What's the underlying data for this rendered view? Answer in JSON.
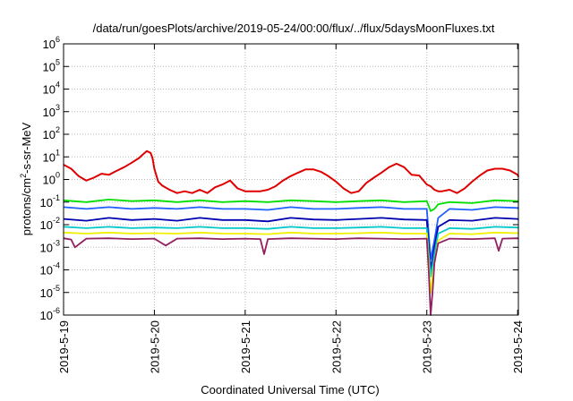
{
  "chart_data": {
    "type": "line",
    "title": "/data/run/goesPlots/archive/2019-05-24/00:00/flux/../flux/5daysMoonFluxes.txt",
    "xlabel": "Coordinated Universal Time (UTC)",
    "ylabel": {
      "before": "protons/cm",
      "sup": "2",
      "after": "-s-sr-MeV"
    },
    "yscale": "log",
    "ylim": [
      1e-06,
      1000000.0
    ],
    "xlim": [
      "2019-05-19",
      "2019-05-24 00:12"
    ],
    "grid": true,
    "legend": "none",
    "y_ticks": [
      {
        "value": 1e-06,
        "base": "10",
        "exp": "-6"
      },
      {
        "value": 1e-05,
        "base": "10",
        "exp": "-5"
      },
      {
        "value": 0.0001,
        "base": "10",
        "exp": "-4"
      },
      {
        "value": 0.001,
        "base": "10",
        "exp": "-3"
      },
      {
        "value": 0.01,
        "base": "10",
        "exp": "-2"
      },
      {
        "value": 0.1,
        "base": "10",
        "exp": "-1"
      },
      {
        "value": 1,
        "base": "10",
        "exp": "0"
      },
      {
        "value": 10.0,
        "base": "10",
        "exp": "1"
      },
      {
        "value": 100.0,
        "base": "10",
        "exp": "2"
      },
      {
        "value": 1000.0,
        "base": "10",
        "exp": "3"
      },
      {
        "value": 10000.0,
        "base": "10",
        "exp": "4"
      },
      {
        "value": 100000.0,
        "base": "10",
        "exp": "5"
      },
      {
        "value": 1000000.0,
        "base": "10",
        "exp": "6"
      }
    ],
    "x_ticks": [
      {
        "value": "2019-05-19",
        "label": "2019-5-19"
      },
      {
        "value": "2019-05-20",
        "label": "2019-5-20"
      },
      {
        "value": "2019-05-21",
        "label": "2019-5-21"
      },
      {
        "value": "2019-05-22",
        "label": "2019-5-22"
      },
      {
        "value": "2019-05-23",
        "label": "2019-5-23"
      },
      {
        "value": "2019-05-24",
        "label": "2019-5-24"
      }
    ],
    "series": [
      {
        "color": "#e00000",
        "x": [
          "2019-05-19 00:00",
          "2019-05-19 02:00",
          "2019-05-19 04:00",
          "2019-05-19 06:00",
          "2019-05-19 08:00",
          "2019-05-19 10:00",
          "2019-05-19 12:00",
          "2019-05-19 14:00",
          "2019-05-19 16:00",
          "2019-05-19 18:00",
          "2019-05-19 20:00",
          "2019-05-19 21:00",
          "2019-05-19 22:00",
          "2019-05-19 23:00",
          "2019-05-19 23:30",
          "2019-05-20 00:00",
          "2019-05-20 01:00",
          "2019-05-20 02:00",
          "2019-05-20 04:00",
          "2019-05-20 06:00",
          "2019-05-20 08:00",
          "2019-05-20 10:00",
          "2019-05-20 12:00",
          "2019-05-20 14:00",
          "2019-05-20 16:00",
          "2019-05-20 18:00",
          "2019-05-20 20:00",
          "2019-05-20 22:00",
          "2019-05-21 00:00",
          "2019-05-21 02:00",
          "2019-05-21 04:00",
          "2019-05-21 06:00",
          "2019-05-21 08:00",
          "2019-05-21 10:00",
          "2019-05-21 12:00",
          "2019-05-21 14:00",
          "2019-05-21 16:00",
          "2019-05-21 18:00",
          "2019-05-21 20:00",
          "2019-05-21 22:00",
          "2019-05-22 00:00",
          "2019-05-22 02:00",
          "2019-05-22 04:00",
          "2019-05-22 06:00",
          "2019-05-22 08:00",
          "2019-05-22 10:00",
          "2019-05-22 12:00",
          "2019-05-22 14:00",
          "2019-05-22 16:00",
          "2019-05-22 18:00",
          "2019-05-22 20:00",
          "2019-05-22 22:00",
          "2019-05-23 00:00",
          "2019-05-23 01:00",
          "2019-05-23 02:00",
          "2019-05-23 03:00",
          "2019-05-23 04:00",
          "2019-05-23 06:00",
          "2019-05-23 08:00",
          "2019-05-23 10:00",
          "2019-05-23 12:00",
          "2019-05-23 14:00",
          "2019-05-23 16:00",
          "2019-05-23 18:00",
          "2019-05-23 20:00",
          "2019-05-23 22:00",
          "2019-05-24 00:00",
          "2019-05-24 00:12"
        ],
        "y": [
          4.5,
          3.0,
          1.4,
          0.9,
          1.2,
          1.8,
          1.6,
          2.4,
          3.5,
          5.5,
          9.0,
          13,
          18,
          15,
          9.0,
          3.0,
          0.8,
          0.55,
          0.35,
          0.25,
          0.3,
          0.25,
          0.35,
          0.25,
          0.45,
          0.6,
          0.9,
          0.4,
          0.3,
          0.3,
          0.3,
          0.35,
          0.5,
          0.9,
          1.4,
          2.0,
          2.8,
          2.8,
          2.2,
          1.4,
          0.8,
          0.4,
          0.25,
          0.3,
          0.7,
          1.2,
          2.0,
          3.5,
          5.0,
          3.5,
          1.6,
          1.5,
          0.6,
          0.5,
          0.35,
          0.3,
          0.3,
          0.35,
          0.25,
          0.4,
          0.8,
          1.5,
          2.5,
          3.0,
          3.0,
          2.5,
          1.6,
          1.3
        ]
      },
      {
        "color": "#00e000",
        "x": [
          "2019-05-19 00:00",
          "2019-05-19 06:00",
          "2019-05-19 12:00",
          "2019-05-19 18:00",
          "2019-05-20 00:00",
          "2019-05-20 06:00",
          "2019-05-20 12:00",
          "2019-05-20 18:00",
          "2019-05-21 00:00",
          "2019-05-21 06:00",
          "2019-05-21 12:00",
          "2019-05-21 18:00",
          "2019-05-22 00:00",
          "2019-05-22 06:00",
          "2019-05-22 12:00",
          "2019-05-22 18:00",
          "2019-05-23 00:00",
          "2019-05-23 01:00",
          "2019-05-23 02:00",
          "2019-05-23 03:00",
          "2019-05-23 06:00",
          "2019-05-23 12:00",
          "2019-05-23 18:00",
          "2019-05-24 00:00",
          "2019-05-24 00:12"
        ],
        "y": [
          0.12,
          0.1,
          0.13,
          0.11,
          0.12,
          0.1,
          0.12,
          0.1,
          0.11,
          0.1,
          0.12,
          0.11,
          0.1,
          0.11,
          0.12,
          0.1,
          0.11,
          0.04,
          0.05,
          0.08,
          0.1,
          0.09,
          0.12,
          0.11,
          0.1
        ]
      },
      {
        "color": "#2060ff",
        "x": [
          "2019-05-19 00:00",
          "2019-05-19 06:00",
          "2019-05-19 12:00",
          "2019-05-19 18:00",
          "2019-05-20 00:00",
          "2019-05-20 06:00",
          "2019-05-20 12:00",
          "2019-05-20 18:00",
          "2019-05-21 00:00",
          "2019-05-21 06:00",
          "2019-05-21 12:00",
          "2019-05-21 18:00",
          "2019-05-22 00:00",
          "2019-05-22 06:00",
          "2019-05-22 12:00",
          "2019-05-22 18:00",
          "2019-05-23 00:00",
          "2019-05-23 01:00",
          "2019-05-23 02:00",
          "2019-05-23 03:00",
          "2019-05-23 06:00",
          "2019-05-23 12:00",
          "2019-05-23 18:00",
          "2019-05-24 00:00",
          "2019-05-24 00:12"
        ],
        "y": [
          0.06,
          0.05,
          0.06,
          0.05,
          0.055,
          0.05,
          0.06,
          0.05,
          0.05,
          0.045,
          0.06,
          0.05,
          0.05,
          0.055,
          0.06,
          0.05,
          0.05,
          0.0003,
          0.002,
          0.02,
          0.05,
          0.045,
          0.06,
          0.055,
          0.05
        ]
      },
      {
        "color": "#0000b0",
        "x": [
          "2019-05-19 00:00",
          "2019-05-19 06:00",
          "2019-05-19 12:00",
          "2019-05-19 18:00",
          "2019-05-20 00:00",
          "2019-05-20 06:00",
          "2019-05-20 12:00",
          "2019-05-20 18:00",
          "2019-05-21 00:00",
          "2019-05-21 06:00",
          "2019-05-21 12:00",
          "2019-05-21 18:00",
          "2019-05-22 00:00",
          "2019-05-22 06:00",
          "2019-05-22 12:00",
          "2019-05-22 18:00",
          "2019-05-23 00:00",
          "2019-05-23 01:00",
          "2019-05-23 02:00",
          "2019-05-23 03:00",
          "2019-05-23 06:00",
          "2019-05-23 12:00",
          "2019-05-23 18:00",
          "2019-05-24 00:00",
          "2019-05-24 00:12"
        ],
        "y": [
          0.018,
          0.015,
          0.02,
          0.016,
          0.018,
          0.015,
          0.02,
          0.016,
          0.016,
          0.014,
          0.02,
          0.017,
          0.016,
          0.018,
          0.02,
          0.017,
          0.016,
          0.0001,
          0.001,
          0.008,
          0.016,
          0.015,
          0.02,
          0.018,
          0.017
        ]
      },
      {
        "color": "#00c8c8",
        "x": [
          "2019-05-19 00:00",
          "2019-05-19 06:00",
          "2019-05-19 12:00",
          "2019-05-19 18:00",
          "2019-05-20 00:00",
          "2019-05-20 06:00",
          "2019-05-20 12:00",
          "2019-05-20 18:00",
          "2019-05-21 00:00",
          "2019-05-21 06:00",
          "2019-05-21 12:00",
          "2019-05-21 18:00",
          "2019-05-22 00:00",
          "2019-05-22 06:00",
          "2019-05-22 12:00",
          "2019-05-22 18:00",
          "2019-05-23 00:00",
          "2019-05-23 01:00",
          "2019-05-23 02:00",
          "2019-05-23 03:00",
          "2019-05-23 06:00",
          "2019-05-23 12:00",
          "2019-05-23 18:00",
          "2019-05-24 00:00",
          "2019-05-24 00:12"
        ],
        "y": [
          0.008,
          0.007,
          0.008,
          0.007,
          0.0075,
          0.007,
          0.008,
          0.007,
          0.007,
          0.0065,
          0.008,
          0.007,
          0.007,
          0.0075,
          0.008,
          0.007,
          0.007,
          5e-05,
          0.0005,
          0.004,
          0.007,
          0.0065,
          0.008,
          0.0075,
          0.007
        ]
      },
      {
        "color": "#f0f000",
        "x": [
          "2019-05-19 00:00",
          "2019-05-19 06:00",
          "2019-05-19 12:00",
          "2019-05-19 18:00",
          "2019-05-20 00:00",
          "2019-05-20 06:00",
          "2019-05-20 12:00",
          "2019-05-20 18:00",
          "2019-05-21 00:00",
          "2019-05-21 06:00",
          "2019-05-21 12:00",
          "2019-05-21 18:00",
          "2019-05-22 00:00",
          "2019-05-22 06:00",
          "2019-05-22 12:00",
          "2019-05-22 18:00",
          "2019-05-23 00:00",
          "2019-05-23 01:00",
          "2019-05-23 02:00",
          "2019-05-23 03:00",
          "2019-05-23 06:00",
          "2019-05-23 12:00",
          "2019-05-23 18:00",
          "2019-05-24 00:00",
          "2019-05-24 00:12"
        ],
        "y": [
          0.0045,
          0.004,
          0.0045,
          0.004,
          0.0042,
          0.004,
          0.0045,
          0.004,
          0.004,
          0.0038,
          0.0045,
          0.004,
          0.004,
          0.0042,
          0.0045,
          0.004,
          0.004,
          1e-05,
          0.0002,
          0.002,
          0.004,
          0.0038,
          0.0045,
          0.0042,
          0.004
        ]
      },
      {
        "color": "#902060",
        "x": [
          "2019-05-19 00:00",
          "2019-05-19 02:00",
          "2019-05-19 03:00",
          "2019-05-19 06:00",
          "2019-05-19 12:00",
          "2019-05-19 18:00",
          "2019-05-20 00:00",
          "2019-05-20 03:00",
          "2019-05-20 06:00",
          "2019-05-20 12:00",
          "2019-05-20 18:00",
          "2019-05-21 00:00",
          "2019-05-21 04:00",
          "2019-05-21 05:00",
          "2019-05-21 06:00",
          "2019-05-21 12:00",
          "2019-05-21 18:00",
          "2019-05-22 00:00",
          "2019-05-22 06:00",
          "2019-05-22 12:00",
          "2019-05-22 18:00",
          "2019-05-23 00:00",
          "2019-05-23 00:30",
          "2019-05-23 01:00",
          "2019-05-23 01:30",
          "2019-05-23 02:00",
          "2019-05-23 03:00",
          "2019-05-23 06:00",
          "2019-05-23 12:00",
          "2019-05-23 18:00",
          "2019-05-23 19:00",
          "2019-05-23 20:00",
          "2019-05-24 00:00",
          "2019-05-24 00:12"
        ],
        "y": [
          0.0025,
          0.0022,
          0.001,
          0.0024,
          0.0025,
          0.0023,
          0.0024,
          0.0012,
          0.0024,
          0.0025,
          0.0023,
          0.0024,
          0.0023,
          0.0005,
          0.0023,
          0.0025,
          0.0024,
          0.0023,
          0.0025,
          0.0024,
          0.0023,
          0.0024,
          0.0001,
          1e-06,
          1e-05,
          0.0002,
          0.0015,
          0.0024,
          0.0023,
          0.0025,
          0.0007,
          0.0024,
          0.0025,
          0.0024
        ]
      }
    ]
  }
}
